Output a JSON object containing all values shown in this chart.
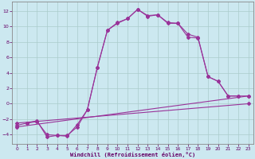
{
  "bg_color": "#cce8f0",
  "line_color": "#993399",
  "grid_color": "#aacccc",
  "xlabel": "Windchill (Refroidissement éolien,°C)",
  "xlabel_color": "#660066",
  "tick_color": "#660066",
  "xlim": [
    -0.5,
    23.5
  ],
  "ylim": [
    -5.2,
    13.2
  ],
  "yticks": [
    -4,
    -2,
    0,
    2,
    4,
    6,
    8,
    10,
    12
  ],
  "xticks": [
    0,
    1,
    2,
    3,
    4,
    5,
    6,
    7,
    8,
    9,
    10,
    11,
    12,
    13,
    14,
    15,
    16,
    17,
    18,
    19,
    20,
    21,
    22,
    23
  ],
  "line1_x": [
    1,
    2,
    3,
    4,
    5,
    6,
    7,
    8,
    9,
    10,
    11,
    12,
    13,
    14,
    15,
    16,
    17,
    18,
    19,
    20,
    21,
    22
  ],
  "line1_y": [
    -2.5,
    -2.2,
    -4.3,
    -4.1,
    -4.1,
    -3.0,
    -0.8,
    4.7,
    9.5,
    10.4,
    11.0,
    12.2,
    11.4,
    11.5,
    10.4,
    10.4,
    9.0,
    8.6,
    3.5,
    2.9,
    1.0,
    1.0
  ],
  "line2_x": [
    0,
    1,
    2,
    3,
    4,
    5,
    6,
    7,
    8,
    9,
    10,
    11,
    12,
    13,
    14,
    15,
    16,
    17,
    18,
    19,
    20,
    21,
    22,
    23
  ],
  "line2_y": [
    -2.8,
    -2.5,
    -2.3,
    -4.0,
    -4.1,
    -4.2,
    -2.7,
    -0.8,
    4.7,
    9.5,
    10.5,
    11.0,
    12.2,
    11.3,
    11.5,
    10.5,
    10.4,
    8.6,
    8.5,
    3.5,
    2.9,
    1.0,
    1.0,
    1.0
  ],
  "line3_x": [
    0,
    23
  ],
  "line3_y": [
    -3.0,
    1.0
  ],
  "line4_x": [
    0,
    23
  ],
  "line4_y": [
    -2.5,
    0.0
  ]
}
